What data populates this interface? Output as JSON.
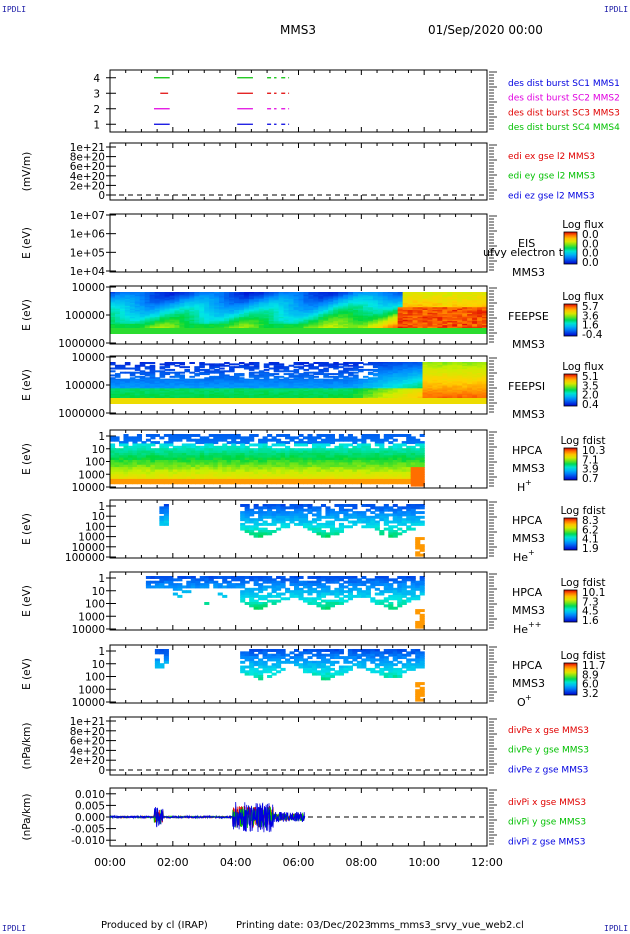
{
  "corners": {
    "tl": "IPDLI",
    "tr": "IPDLI",
    "bl": "IPDLI",
    "br": "IPDLI"
  },
  "header": {
    "spacecraft": "MMS3",
    "date_time": "01/Sep/2020 00:00"
  },
  "footer": {
    "produced": "Produced by cl (IRAP)",
    "printing": "Printing date: 03/Dec/2023",
    "file": "mms_mms3_srvy_vue_web2.cl"
  },
  "colors": {
    "red": "#e00000",
    "green": "#00c000",
    "blue": "#0000e0",
    "magenta": "#e000e0"
  },
  "time_axis": {
    "labels": [
      "00:00",
      "02:00",
      "04:00",
      "06:00",
      "08:00",
      "10:00",
      "12:00"
    ]
  },
  "chart_data": [
    {
      "type": "scatter",
      "id": "dist",
      "ylim": [
        0.5,
        4.5
      ],
      "yticks": [
        "1",
        "2",
        "3",
        "4"
      ],
      "series": [
        {
          "name": "des dist burst SC1 MMS1",
          "color": "#0000e0",
          "y": 1,
          "segments": [
            [
              1.4,
              1.9
            ],
            [
              4.05,
              4.55
            ],
            [
              5.0,
              5.3
            ],
            [
              5.45,
              5.7
            ]
          ]
        },
        {
          "name": "des dist burst SC2 MMS2",
          "color": "#e000e0",
          "y": 2,
          "segments": [
            [
              1.4,
              1.9
            ],
            [
              4.05,
              4.55
            ],
            [
              5.0,
              5.3
            ],
            [
              5.45,
              5.7
            ]
          ]
        },
        {
          "name": "des dist burst SC3 MMS3",
          "color": "#e00000",
          "y": 3,
          "segments": [
            [
              1.6,
              1.85
            ],
            [
              4.05,
              4.55
            ],
            [
              5.0,
              5.3
            ],
            [
              5.45,
              5.7
            ]
          ]
        },
        {
          "name": "des dist burst SC4 MMS4",
          "color": "#00c000",
          "y": 4,
          "segments": [
            [
              1.4,
              1.9
            ],
            [
              4.05,
              4.55
            ],
            [
              5.0,
              5.3
            ],
            [
              5.45,
              5.7
            ]
          ]
        }
      ]
    },
    {
      "type": "line",
      "id": "edi",
      "ylabel": "(mV/m)",
      "yticks": [
        "0",
        "2e+20",
        "4e+20",
        "6e+20",
        "8e+20",
        "1e+21"
      ],
      "series": [
        {
          "name": "edi ex gse l2 MMS3",
          "color": "#e00000"
        },
        {
          "name": "edi ey gse l2 MMS3",
          "color": "#00c000"
        },
        {
          "name": "edi ez gse l2 MMS3",
          "color": "#0000e0"
        }
      ]
    },
    {
      "type": "heatmap",
      "id": "eis",
      "ylabel": "E (eV)",
      "yticks": [
        "1e+04",
        "1e+05",
        "1e+06",
        "1e+07"
      ],
      "labels": [
        "EIS",
        "MMS3"
      ],
      "overlay": "ufvy electron to",
      "colorbar": {
        "title": "Log flux",
        "ticks": [
          "0.0",
          "0.0",
          "0.0",
          "0.0"
        ]
      }
    },
    {
      "type": "heatmap",
      "id": "feepse",
      "ylabel": "E (eV)",
      "yticks": [
        "10000",
        "100000",
        "1000000"
      ],
      "labels": [
        "FEEPSE",
        "MMS3"
      ],
      "colorbar": {
        "title": "Log flux",
        "ticks": [
          "5.7",
          "3.6",
          "1.6",
          "-0.4"
        ]
      }
    },
    {
      "type": "heatmap",
      "id": "feepsi",
      "ylabel": "E (eV)",
      "yticks": [
        "10000",
        "100000",
        "1000000"
      ],
      "labels": [
        "FEEPSI",
        "MMS3"
      ],
      "colorbar": {
        "title": "Log flux",
        "ticks": [
          "5.1",
          "3.5",
          "2.0",
          "0.4"
        ]
      }
    },
    {
      "type": "heatmap",
      "id": "hpca_h",
      "ylabel": "E (eV)",
      "yticks": [
        "1",
        "10",
        "100",
        "1000",
        "10000"
      ],
      "labels": [
        "HPCA",
        "MMS3",
        "H",
        "+"
      ],
      "colorbar": {
        "title": "Log fdist",
        "ticks": [
          "10.3",
          "7.1",
          "3.9",
          "0.7"
        ]
      }
    },
    {
      "type": "heatmap",
      "id": "hpca_he",
      "ylabel": "E (eV)",
      "yticks": [
        "1",
        "10",
        "100",
        "1000",
        "10000",
        "100000"
      ],
      "labels": [
        "HPCA",
        "MMS3",
        "He",
        "+"
      ],
      "colorbar": {
        "title": "Log fdist",
        "ticks": [
          "8.3",
          "6.2",
          "4.1",
          "1.9"
        ]
      }
    },
    {
      "type": "heatmap",
      "id": "hpca_hepp",
      "ylabel": "E (eV)",
      "yticks": [
        "1",
        "10",
        "100",
        "1000",
        "10000"
      ],
      "labels": [
        "HPCA",
        "MMS3",
        "He",
        "++"
      ],
      "colorbar": {
        "title": "Log fdist",
        "ticks": [
          "10.1",
          "7.3",
          "4.5",
          "1.6"
        ]
      }
    },
    {
      "type": "heatmap",
      "id": "hpca_o",
      "ylabel": "E (eV)",
      "yticks": [
        "1",
        "10",
        "100",
        "1000",
        "10000"
      ],
      "labels": [
        "HPCA",
        "MMS3",
        "O",
        "+"
      ],
      "colorbar": {
        "title": "Log fdist",
        "ticks": [
          "11.7",
          "8.9",
          "6.0",
          "3.2"
        ]
      }
    },
    {
      "type": "line",
      "id": "divpe",
      "ylabel": "(nPa/km)",
      "yticks": [
        "0",
        "2e+20",
        "4e+20",
        "6e+20",
        "8e+20",
        "1e+21"
      ],
      "series": [
        {
          "name": "divPe x gse MMS3",
          "color": "#e00000"
        },
        {
          "name": "divPe y gse MMS3",
          "color": "#00c000"
        },
        {
          "name": "divPe z gse MMS3",
          "color": "#0000e0"
        }
      ]
    },
    {
      "type": "line",
      "id": "divpi",
      "ylabel": "(nPa/km)",
      "ylim": [
        -0.0125,
        0.0125
      ],
      "yticks": [
        "-0.010",
        "-0.005",
        "0.000",
        "0.005",
        "0.010"
      ],
      "series": [
        {
          "name": "divPi x gse MMS3",
          "color": "#e00000"
        },
        {
          "name": "divPi y gse MMS3",
          "color": "#00c000"
        },
        {
          "name": "divPi z gse MMS3",
          "color": "#0000e0"
        }
      ]
    }
  ]
}
